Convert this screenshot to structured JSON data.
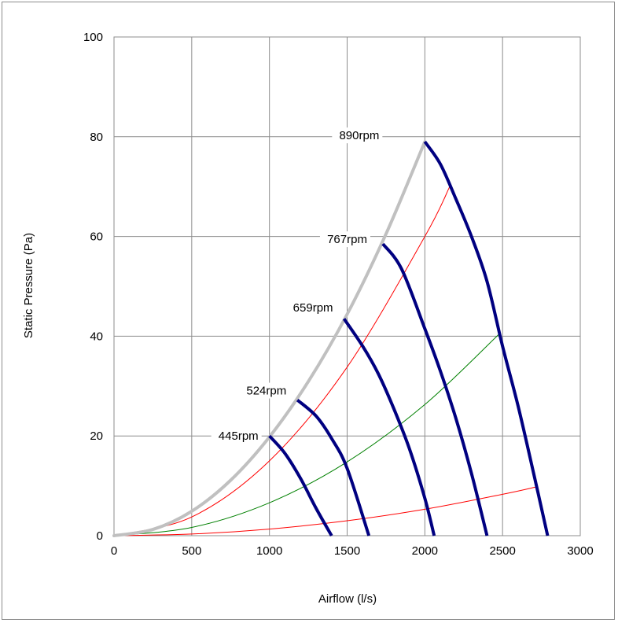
{
  "chart_data": {
    "type": "line",
    "title": "",
    "xlabel": "Airflow (l/s)",
    "ylabel": "Static Pressure (Pa)",
    "xlim": [
      0,
      3000
    ],
    "ylim": [
      0,
      100
    ],
    "x_ticks": [
      "0",
      "500",
      "1000",
      "1500",
      "2000",
      "2500",
      "3000"
    ],
    "y_ticks": [
      "0",
      "20",
      "40",
      "60",
      "80",
      "100"
    ],
    "grid": true,
    "legend": "none",
    "colors": {
      "fan_curve": "#000080",
      "peak_envelope": "#c0c0c0",
      "system_red": "#ff0000",
      "system_green": "#008000"
    },
    "fan_curves": [
      {
        "label": "445rpm",
        "x": [
          1000,
          1100,
          1200,
          1300,
          1400
        ],
        "y": [
          20,
          16.5,
          11.5,
          5.5,
          0
        ]
      },
      {
        "label": "524rpm",
        "x": [
          1180,
          1300,
          1400,
          1500,
          1640
        ],
        "y": [
          27.2,
          24.0,
          19.5,
          13.5,
          0
        ]
      },
      {
        "label": "659rpm",
        "x": [
          1480,
          1600,
          1700,
          1800,
          1900,
          2000,
          2060
        ],
        "y": [
          43.5,
          38.0,
          32.5,
          25.5,
          17.5,
          7.5,
          0
        ]
      },
      {
        "label": "767rpm",
        "x": [
          1730,
          1850,
          2000,
          2100,
          2200,
          2300,
          2400
        ],
        "y": [
          58.5,
          53.5,
          41.5,
          33.0,
          23.5,
          12.5,
          0
        ]
      },
      {
        "label": "890rpm",
        "x": [
          2000,
          2100,
          2200,
          2300,
          2400,
          2500,
          2600,
          2700,
          2790
        ],
        "y": [
          79,
          74.5,
          67.5,
          60.0,
          51.0,
          38.0,
          26.0,
          12.5,
          0
        ]
      }
    ],
    "peak_envelope": {
      "x": [
        0,
        250,
        500,
        750,
        1000,
        1250,
        1500,
        1750,
        2000
      ],
      "y": [
        0,
        1.25,
        4.9,
        11.1,
        19.8,
        30.9,
        44.4,
        60.5,
        79
      ]
    },
    "system_curves": [
      {
        "color": "red",
        "x": [
          0,
          500,
          1000,
          1500,
          2000,
          2160
        ],
        "y": [
          0,
          3.75,
          15.0,
          33.8,
          60.0,
          70.0
        ]
      },
      {
        "color": "green",
        "x": [
          0,
          500,
          1000,
          1500,
          2000,
          2480
        ],
        "y": [
          0,
          1.65,
          6.6,
          14.8,
          26.3,
          40.5
        ]
      },
      {
        "color": "red",
        "x": [
          0,
          500,
          1000,
          1500,
          2000,
          2500,
          2720
        ],
        "y": [
          0,
          0.33,
          1.33,
          3.0,
          5.3,
          8.3,
          9.8
        ]
      }
    ]
  }
}
